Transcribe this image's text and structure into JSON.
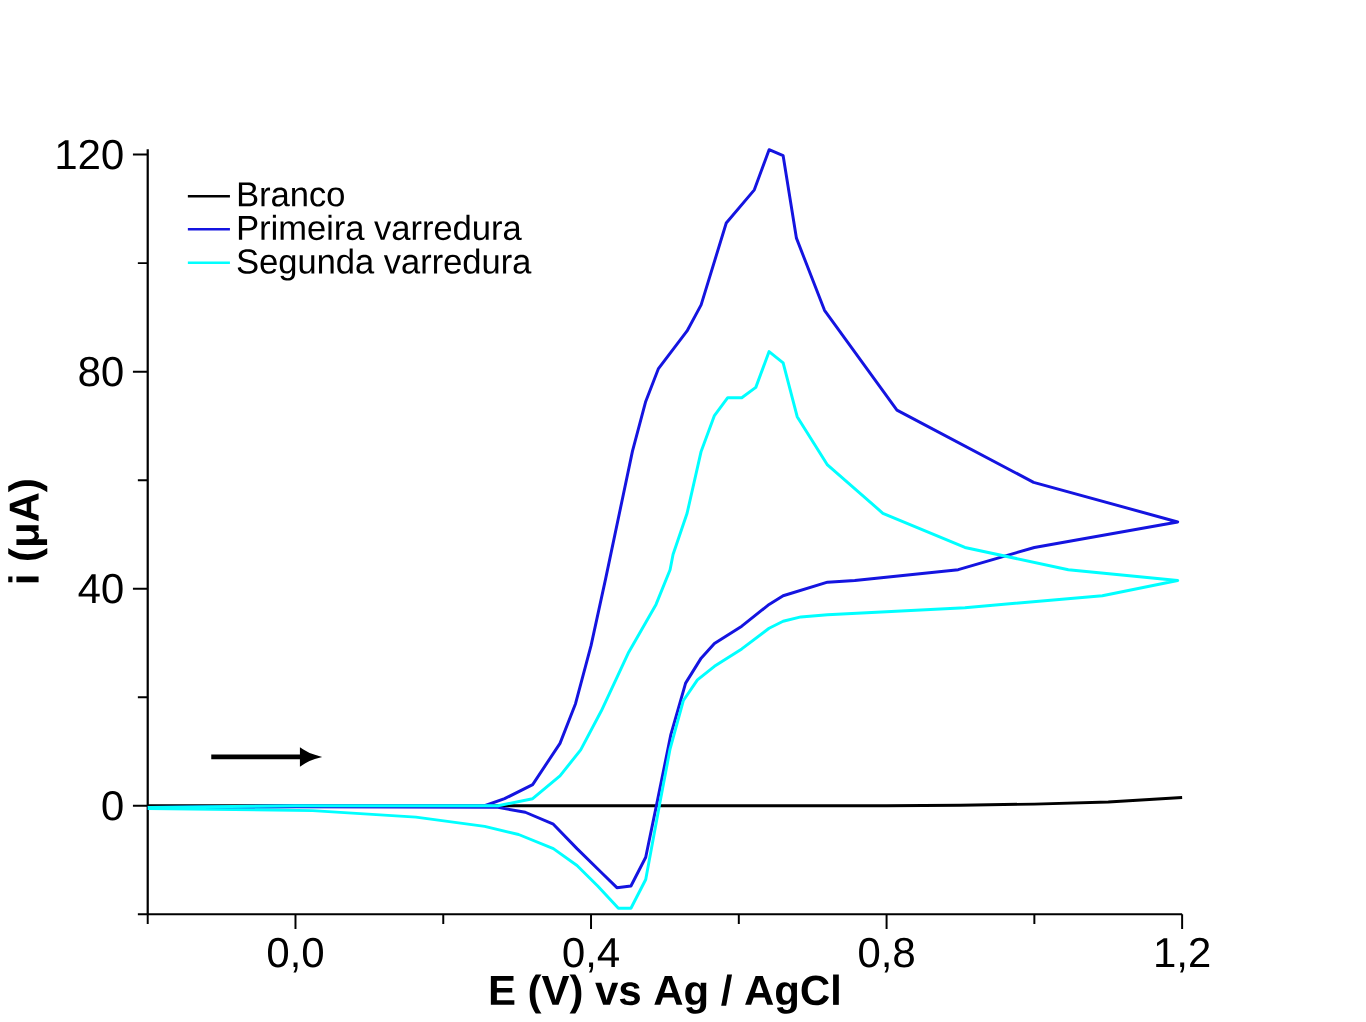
{
  "chart_data": {
    "type": "line",
    "xlabel": "E (V) vs Ag / AgCl",
    "ylabel": "i (μA)",
    "xlim": [
      -0.2,
      1.2
    ],
    "ylim": [
      -20,
      121
    ],
    "xticks": [
      {
        "value": -0.2,
        "label": null
      },
      {
        "value": 0.0,
        "label": "0,0"
      },
      {
        "value": 0.2,
        "label": null
      },
      {
        "value": 0.4,
        "label": "0,4"
      },
      {
        "value": 0.6,
        "label": null
      },
      {
        "value": 0.8,
        "label": "0,8"
      },
      {
        "value": 1.0,
        "label": null
      },
      {
        "value": 1.2,
        "label": "1,2"
      }
    ],
    "yticks": [
      {
        "value": -20,
        "label": null
      },
      0,
      {
        "value": 20,
        "label": null
      },
      40,
      {
        "value": 60,
        "label": null
      },
      80,
      {
        "value": 100,
        "label": null
      },
      120
    ],
    "legend": "top left",
    "grid": false,
    "marker": "none",
    "series": [
      {
        "name": "Branco",
        "color": "#000000",
        "x": [
          -0.2,
          0.2,
          0.6,
          0.8,
          0.9,
          1.0,
          1.1,
          1.2
        ],
        "values": [
          0,
          0,
          0,
          0,
          0.1,
          0.3,
          0.7,
          1.5
        ]
      },
      {
        "name": "Primeira varredura",
        "color": "#1414e0",
        "x": [
          -0.2,
          0.0,
          0.256,
          0.283,
          0.321,
          0.358,
          0.379,
          0.4,
          0.42,
          0.456,
          0.474,
          0.491,
          0.53,
          0.549,
          0.583,
          0.621,
          0.641,
          0.66,
          0.678,
          0.716,
          0.814,
          0.999,
          1.194,
          1.0,
          0.897,
          0.757,
          0.72,
          0.66,
          0.641,
          0.604,
          0.567,
          0.549,
          0.528,
          0.508,
          0.488,
          0.474,
          0.454,
          0.435,
          0.414,
          0.381,
          0.349,
          0.311,
          0.274,
          0.0,
          -0.2
        ],
        "values": [
          -0.3,
          0,
          0,
          1.3,
          3.9,
          11.5,
          18.8,
          29.5,
          42,
          65.3,
          74.5,
          80.5,
          87.5,
          92.3,
          107.4,
          113.5,
          120.9,
          119.8,
          104.6,
          91.3,
          72.9,
          59.6,
          52.3,
          47.6,
          43.5,
          41.5,
          41.2,
          38.7,
          37.1,
          33.1,
          29.9,
          27.2,
          22.6,
          13.1,
          -0.3,
          -9.5,
          -14.8,
          -15.1,
          -12.3,
          -7.9,
          -3.4,
          -1.2,
          -0.3,
          -0.2,
          -0.5
        ]
      },
      {
        "name": "Segunda varredura",
        "color": "#00ffff",
        "x": [
          -0.2,
          0.0,
          0.274,
          0.321,
          0.358,
          0.386,
          0.414,
          0.451,
          0.488,
          0.507,
          0.511,
          0.53,
          0.549,
          0.567,
          0.585,
          0.604,
          0.623,
          0.641,
          0.66,
          0.679,
          0.72,
          0.795,
          0.906,
          1.046,
          1.194,
          1.092,
          0.906,
          0.72,
          0.684,
          0.66,
          0.641,
          0.604,
          0.567,
          0.544,
          0.525,
          0.507,
          0.493,
          0.474,
          0.454,
          0.437,
          0.409,
          0.381,
          0.349,
          0.302,
          0.256,
          0.163,
          0.023,
          -0.2
        ],
        "values": [
          -0.3,
          0,
          0,
          1.3,
          5.5,
          10.3,
          17.5,
          28.3,
          37.1,
          43.5,
          46.3,
          53.9,
          65.3,
          71.9,
          75.2,
          75.2,
          77.1,
          83.7,
          81.6,
          71.7,
          62.8,
          53.9,
          47.6,
          43.5,
          41.5,
          38.7,
          36.5,
          35.2,
          34.8,
          34.0,
          32.7,
          28.9,
          25.7,
          23.2,
          19.4,
          10.5,
          0.4,
          -13.6,
          -18.9,
          -18.9,
          -14.8,
          -11,
          -7.9,
          -5.3,
          -3.8,
          -2.1,
          -0.9,
          -0.5
        ]
      }
    ]
  }
}
